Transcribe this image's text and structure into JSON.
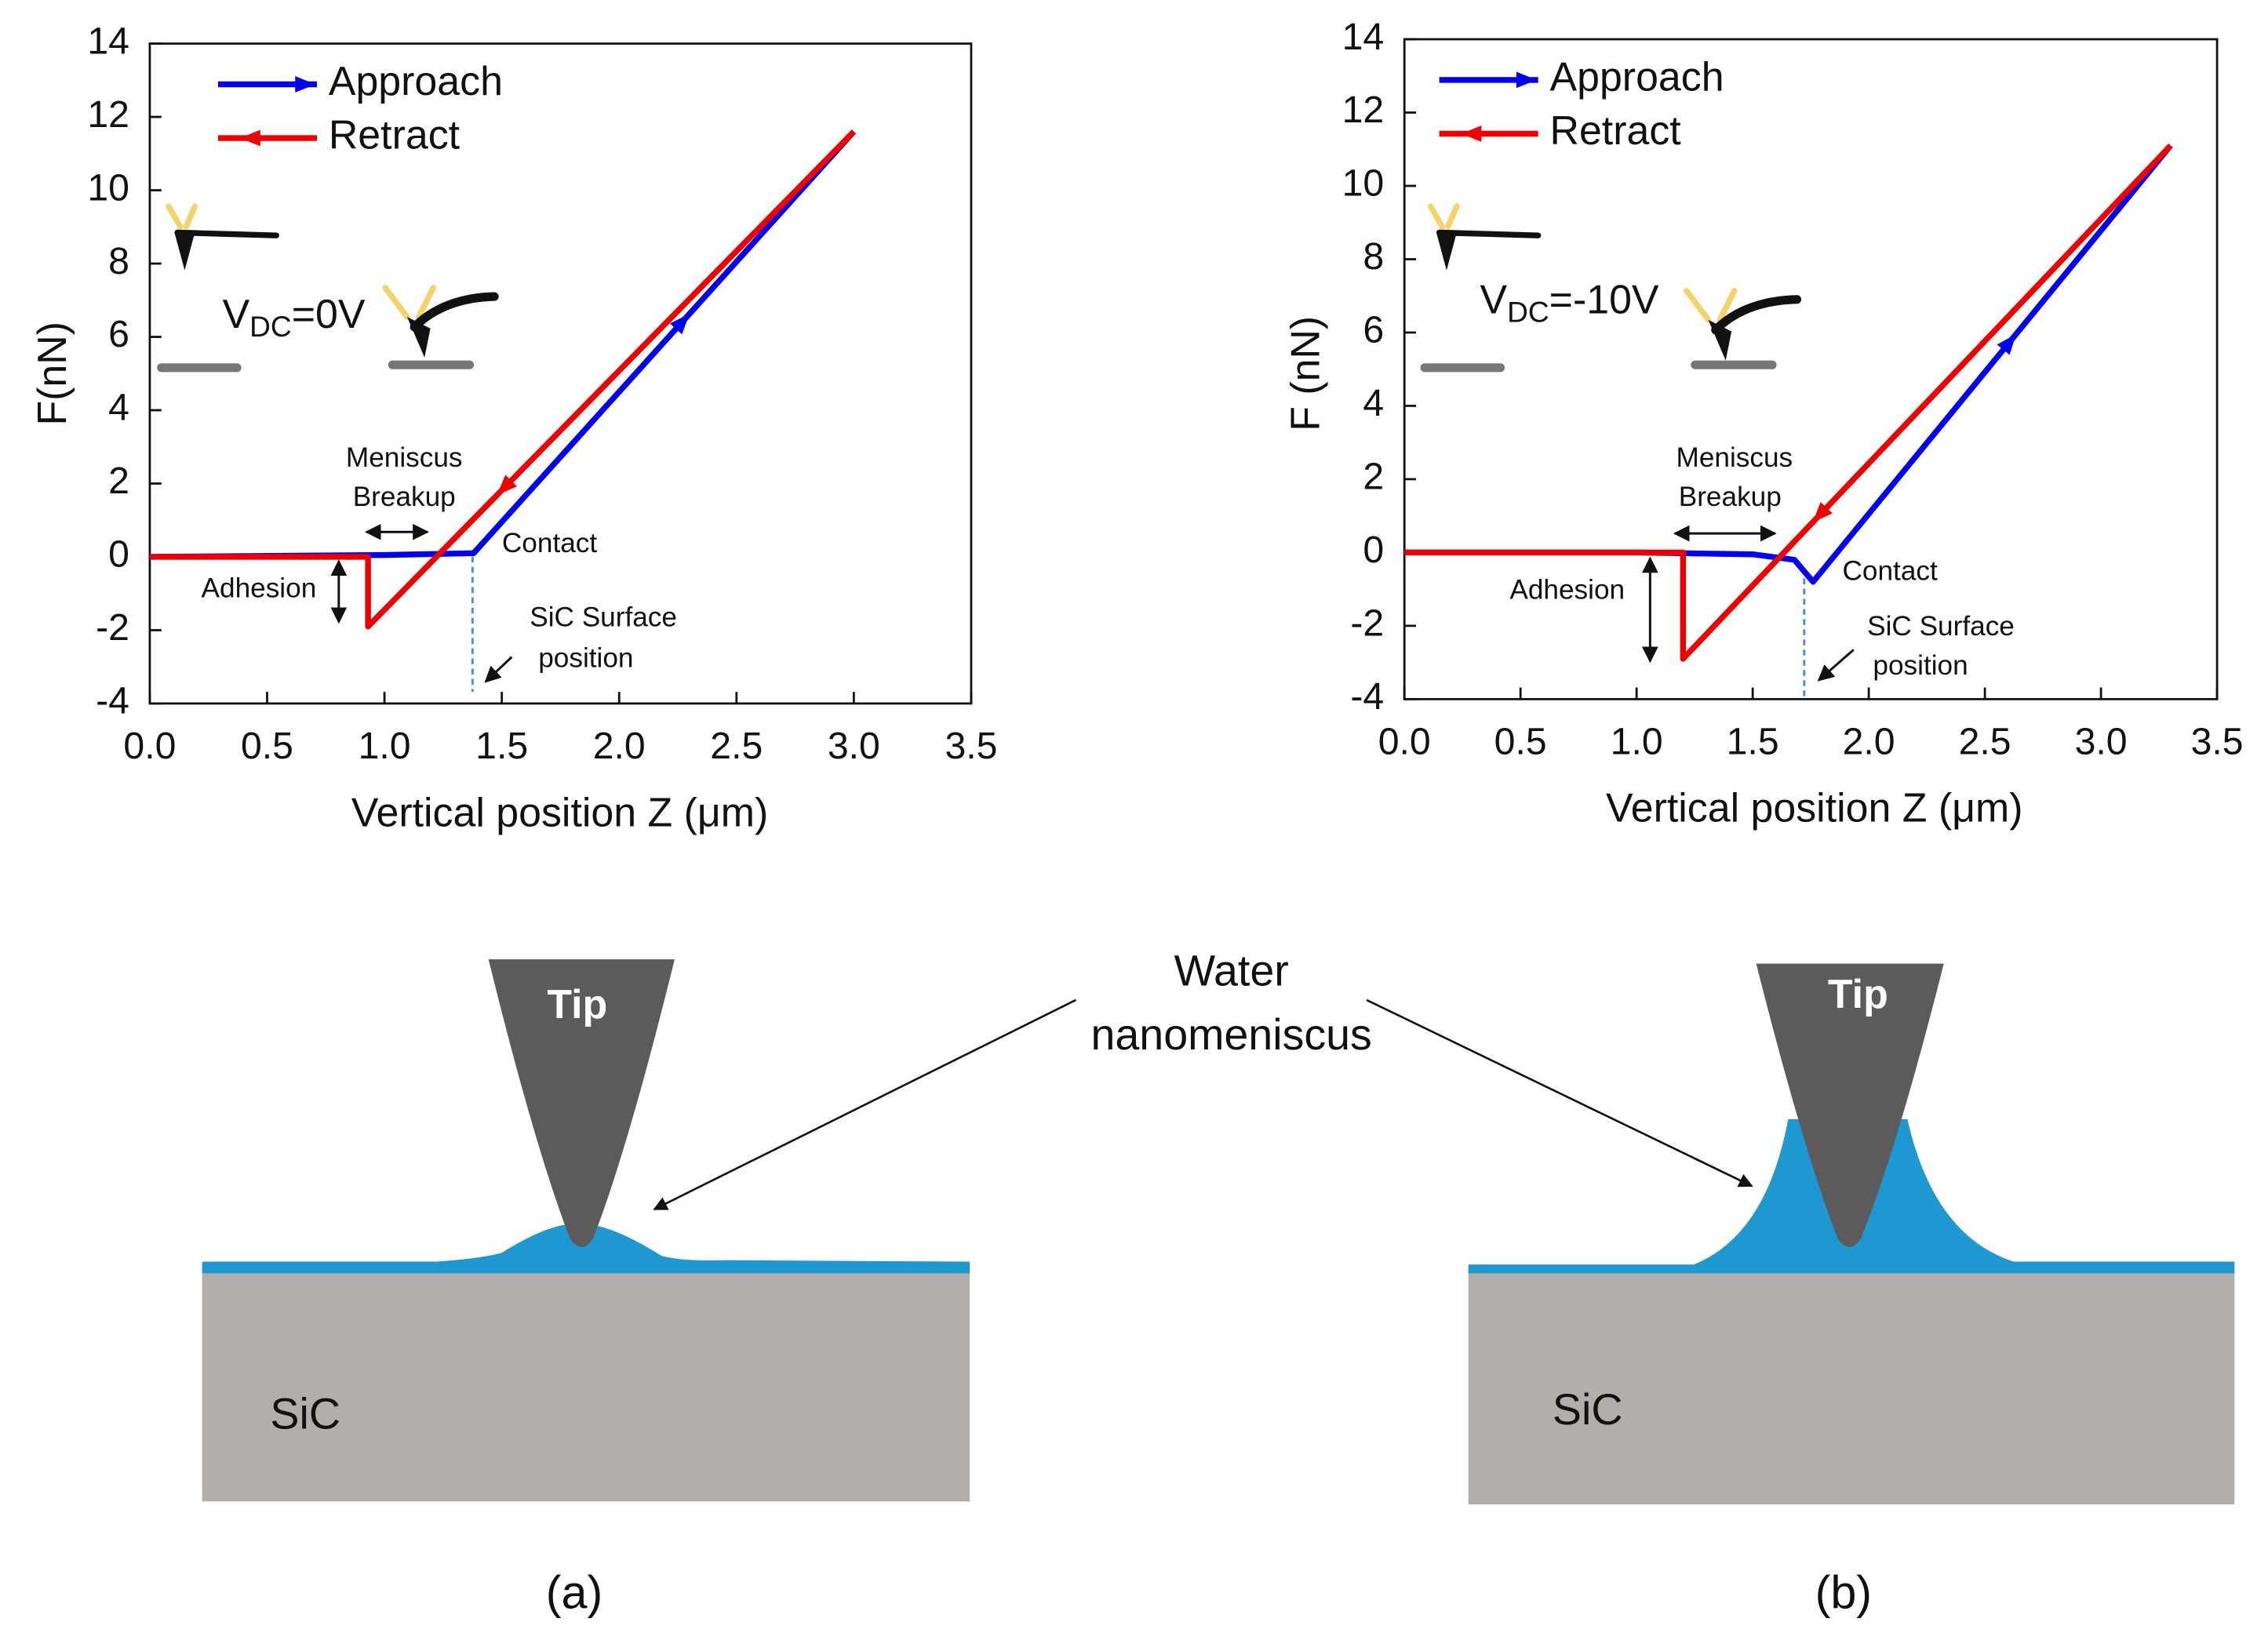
{
  "chart_data": [
    {
      "type": "line",
      "xlabel": "Vertical position Z (μm)",
      "ylabel": "F(nN)",
      "xlim": [
        0,
        3.5
      ],
      "ylim": [
        -4,
        14
      ],
      "xticks": [
        {
          "value": 0,
          "label": "0.0"
        },
        {
          "value": 0.5,
          "label": "0.5"
        },
        {
          "value": 1,
          "label": "1.0"
        },
        {
          "value": 1.5,
          "label": "1.5"
        },
        {
          "value": 2,
          "label": "2.0"
        },
        {
          "value": 2.5,
          "label": "2.5"
        },
        {
          "value": 3,
          "label": "3.0"
        },
        {
          "value": 3.5,
          "label": "3.5"
        }
      ],
      "yticks": [
        -4,
        -2,
        0,
        2,
        4,
        6,
        8,
        10,
        12,
        14
      ],
      "grid": false,
      "series": [
        {
          "name": "Approach",
          "color": "#0000ee",
          "x": [
            0,
            1.0,
            1.38,
            3.0
          ],
          "values": [
            0,
            0.05,
            0.1,
            11.6
          ]
        },
        {
          "name": "Retract",
          "color": "#ee0000",
          "x": [
            3.0,
            0.93,
            0.93,
            0.7,
            0
          ],
          "values": [
            11.6,
            -1.9,
            0,
            0,
            0
          ]
        }
      ],
      "inset_label": {
        "main": "V",
        "sub": "DC",
        "rest": "=0V"
      },
      "annotations": [
        "Meniscus",
        "Breakup",
        "Contact",
        "Adhesion",
        "SiC Surface",
        "position"
      ]
    },
    {
      "type": "line",
      "xlabel": "Vertical position Z (μm)",
      "ylabel": "F (nN)",
      "xlim": [
        0,
        3.5
      ],
      "ylim": [
        -4,
        14
      ],
      "xticks": [
        {
          "value": 0,
          "label": "0.0"
        },
        {
          "value": 0.5,
          "label": "0.5"
        },
        {
          "value": 1,
          "label": "1.0"
        },
        {
          "value": 1.5,
          "label": "1.5"
        },
        {
          "value": 2,
          "label": "2.0"
        },
        {
          "value": 2.5,
          "label": "2.5"
        },
        {
          "value": 3,
          "label": "3.0"
        },
        {
          "value": 3.5,
          "label": "3.5"
        }
      ],
      "yticks": [
        -4,
        -2,
        0,
        2,
        4,
        6,
        8,
        10,
        12,
        14
      ],
      "grid": false,
      "series": [
        {
          "name": "Approach",
          "color": "#0000ee",
          "x": [
            0,
            1.0,
            1.5,
            1.68,
            1.76,
            3.3
          ],
          "values": [
            0,
            0,
            -0.05,
            -0.2,
            -0.8,
            11.1
          ]
        },
        {
          "name": "Retract",
          "color": "#ee0000",
          "x": [
            3.3,
            1.2,
            1.2,
            0
          ],
          "values": [
            11.1,
            -2.9,
            0,
            0
          ]
        }
      ],
      "inset_label": {
        "main": "V",
        "sub": "DC",
        "rest": "=-10V"
      },
      "annotations": [
        "Meniscus",
        "Breakup",
        "Contact",
        "Adhesion",
        "SiC Surface",
        "position"
      ]
    }
  ],
  "diagram": {
    "water_label": [
      "Water",
      "nanomeniscus"
    ],
    "panels": [
      {
        "tip": "Tip",
        "substrate": "SiC",
        "caption": "(a)"
      },
      {
        "tip": "Tip",
        "substrate": "SiC",
        "caption": "(b)"
      }
    ]
  }
}
